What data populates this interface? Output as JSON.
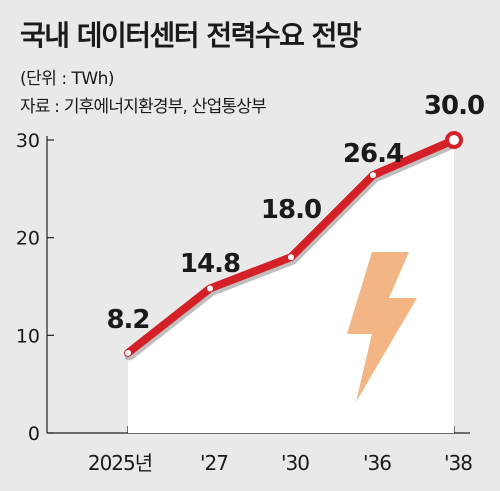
{
  "header": {
    "title": "국내 데이터센터 전력수요 전망",
    "unit": "(단위 : TWh)",
    "source": "자료 : 기후에너지환경부, 산업통상부"
  },
  "chart_data": {
    "type": "area",
    "categories": [
      "2025년",
      "'27",
      "'30",
      "'36",
      "'38"
    ],
    "values": [
      8.2,
      14.8,
      18.0,
      26.4,
      30.0
    ],
    "value_labels": [
      "8.2",
      "14.8",
      "18.0",
      "26.4",
      "30.0"
    ],
    "yticks": [
      "0",
      "10",
      "20",
      "30"
    ],
    "ylim": [
      0,
      30
    ],
    "grid": false,
    "line_color": "#d42027",
    "area_color": "#ffffff",
    "icon": "lightning-bolt-icon",
    "icon_color": "#f2b583"
  }
}
